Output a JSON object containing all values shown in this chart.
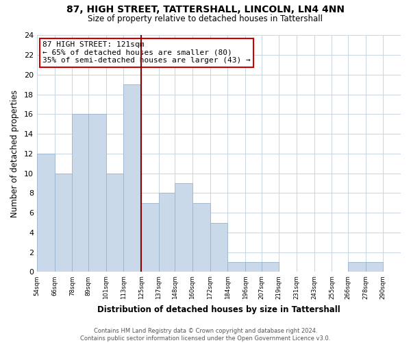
{
  "title": "87, HIGH STREET, TATTERSHALL, LINCOLN, LN4 4NN",
  "subtitle": "Size of property relative to detached houses in Tattershall",
  "xlabel": "Distribution of detached houses by size in Tattershall",
  "ylabel": "Number of detached properties",
  "bar_edges": [
    54,
    66,
    78,
    89,
    101,
    113,
    125,
    137,
    148,
    160,
    172,
    184,
    196,
    207,
    219,
    231,
    243,
    255,
    266,
    278,
    290
  ],
  "bar_heights": [
    12,
    10,
    16,
    16,
    10,
    19,
    7,
    8,
    9,
    7,
    5,
    1,
    1,
    1,
    0,
    0,
    0,
    0,
    1,
    1,
    0
  ],
  "bar_color": "#c9d9ea",
  "bar_edgecolor": "#9ab4cc",
  "reference_line_x": 125,
  "reference_line_color": "#8b0000",
  "annotation_title": "87 HIGH STREET: 121sqm",
  "annotation_line1": "← 65% of detached houses are smaller (80)",
  "annotation_line2": "35% of semi-detached houses are larger (43) →",
  "annotation_box_edgecolor": "#cc0000",
  "annotation_box_facecolor": "white",
  "xlim": [
    54,
    302
  ],
  "ylim": [
    0,
    24
  ],
  "yticks": [
    0,
    2,
    4,
    6,
    8,
    10,
    12,
    14,
    16,
    18,
    20,
    22,
    24
  ],
  "xtick_labels": [
    "54sqm",
    "66sqm",
    "78sqm",
    "89sqm",
    "101sqm",
    "113sqm",
    "125sqm",
    "137sqm",
    "148sqm",
    "160sqm",
    "172sqm",
    "184sqm",
    "196sqm",
    "207sqm",
    "219sqm",
    "231sqm",
    "243sqm",
    "255sqm",
    "266sqm",
    "278sqm",
    "290sqm"
  ],
  "footer_line1": "Contains HM Land Registry data © Crown copyright and database right 2024.",
  "footer_line2": "Contains public sector information licensed under the Open Government Licence v3.0.",
  "grid_color": "#c8d4e0",
  "background_color": "#ffffff"
}
